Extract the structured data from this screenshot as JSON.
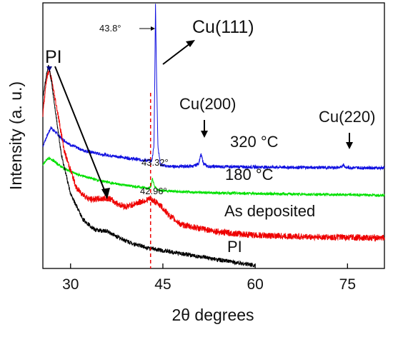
{
  "chart_data": {
    "type": "line",
    "title": "",
    "xlabel": "2θ  degrees",
    "ylabel": "Intensity  (a. u.)",
    "xlim": [
      25.5,
      81
    ],
    "ylim": [
      0,
      1
    ],
    "xticks": [
      30,
      45,
      60,
      75
    ],
    "yticks": [],
    "grid": false,
    "legend": "none",
    "series": [
      {
        "name": "320 °C",
        "color": "#1010e0",
        "baseline": 0.382,
        "noise": 0.006,
        "points": [
          [
            25.5,
            0.46
          ],
          [
            26,
            0.49
          ],
          [
            26.8,
            0.53
          ],
          [
            27.5,
            0.515
          ],
          [
            28.5,
            0.49
          ],
          [
            30,
            0.465
          ],
          [
            32,
            0.445
          ],
          [
            35,
            0.43
          ],
          [
            38,
            0.42
          ],
          [
            41,
            0.41
          ],
          [
            43.2,
            0.405
          ],
          [
            43.55,
            0.46
          ],
          [
            43.7,
            0.75
          ],
          [
            43.8,
            1.0
          ],
          [
            43.95,
            0.75
          ],
          [
            44.2,
            0.46
          ],
          [
            44.6,
            0.39
          ],
          [
            46,
            0.384
          ],
          [
            50,
            0.385
          ],
          [
            50.8,
            0.395
          ],
          [
            51.2,
            0.43
          ],
          [
            51.6,
            0.395
          ],
          [
            52.3,
            0.384
          ],
          [
            60,
            0.382
          ],
          [
            70,
            0.38
          ],
          [
            74,
            0.38
          ],
          [
            74.3,
            0.393
          ],
          [
            74.7,
            0.38
          ],
          [
            81,
            0.378
          ]
        ]
      },
      {
        "name": "180 °C",
        "color": "#00e000",
        "baseline": 0.28,
        "noise": 0.005,
        "points": [
          [
            25.5,
            0.39
          ],
          [
            26.3,
            0.415
          ],
          [
            27,
            0.41
          ],
          [
            27.8,
            0.395
          ],
          [
            29,
            0.375
          ],
          [
            31,
            0.355
          ],
          [
            34,
            0.335
          ],
          [
            37,
            0.32
          ],
          [
            40,
            0.31
          ],
          [
            42.8,
            0.302
          ],
          [
            43.1,
            0.312
          ],
          [
            43.32,
            0.338
          ],
          [
            43.6,
            0.31
          ],
          [
            44.2,
            0.295
          ],
          [
            48,
            0.288
          ],
          [
            55,
            0.284
          ],
          [
            65,
            0.28
          ],
          [
            81,
            0.276
          ]
        ]
      },
      {
        "name": "As deposited",
        "color": "#ee0000",
        "baseline": 0.12,
        "noise": 0.012,
        "points": [
          [
            25.5,
            0.58
          ],
          [
            26,
            0.7
          ],
          [
            26.5,
            0.75
          ],
          [
            27,
            0.7
          ],
          [
            27.8,
            0.6
          ],
          [
            29,
            0.44
          ],
          [
            31,
            0.3
          ],
          [
            33,
            0.26
          ],
          [
            35,
            0.262
          ],
          [
            36.2,
            0.265
          ],
          [
            37.5,
            0.245
          ],
          [
            39,
            0.232
          ],
          [
            41,
            0.248
          ],
          [
            42.96,
            0.262
          ],
          [
            44.5,
            0.24
          ],
          [
            46,
            0.2
          ],
          [
            48,
            0.165
          ],
          [
            51,
            0.15
          ],
          [
            55,
            0.135
          ],
          [
            60,
            0.125
          ],
          [
            70,
            0.118
          ],
          [
            81,
            0.115
          ]
        ]
      },
      {
        "name": "PI",
        "color": "#000000",
        "baseline": 0.02,
        "noise": 0.008,
        "points": [
          [
            25.5,
            0.64
          ],
          [
            26,
            0.72
          ],
          [
            26.4,
            0.76
          ],
          [
            26.8,
            0.72
          ],
          [
            27.5,
            0.6
          ],
          [
            28.5,
            0.43
          ],
          [
            30,
            0.28
          ],
          [
            32,
            0.185
          ],
          [
            34,
            0.145
          ],
          [
            36,
            0.14
          ],
          [
            37.5,
            0.12
          ],
          [
            40,
            0.095
          ],
          [
            43,
            0.075
          ],
          [
            47,
            0.06
          ],
          [
            52,
            0.04
          ],
          [
            57,
            0.022
          ],
          [
            60,
            0.012
          ]
        ]
      }
    ],
    "annotations": {
      "pi_label": "PI",
      "cu111": "Cu(111)",
      "cu200": "Cu(200)",
      "cu220": "Cu(220)",
      "peak_438": "43.8°",
      "peak_4332": "43.32°",
      "peak_4296": "42.96°",
      "label_320": "320 °C",
      "label_180": "180 °C",
      "label_asdep": "As deposited",
      "label_pi": "PI"
    },
    "reference_line_x": 43.0,
    "reference_line_color": "#ee0000"
  }
}
